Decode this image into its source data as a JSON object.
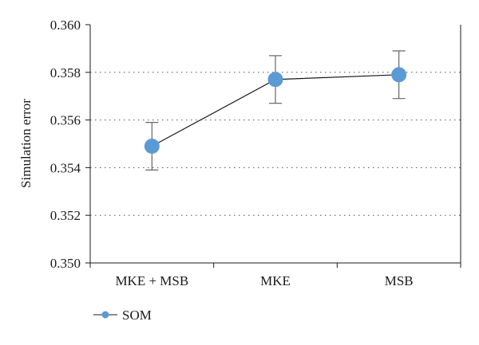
{
  "chart_data": {
    "type": "line",
    "title": "",
    "xlabel": "",
    "ylabel": "Simulation error",
    "categories": [
      "MKE + MSB",
      "MKE",
      "MSB"
    ],
    "ylim": [
      0.35,
      0.36
    ],
    "yticks": [
      "0.350",
      "0.352",
      "0.354",
      "0.356",
      "0.358",
      "0.360"
    ],
    "grid": "horizontal-dotted",
    "legend_position": "bottom-left",
    "series": [
      {
        "name": "SOM",
        "color": "#5b9bd5",
        "values": [
          0.3549,
          0.3577,
          0.3579
        ],
        "error_low": [
          0.3539,
          0.3567,
          0.3569
        ],
        "error_high": [
          0.3559,
          0.3587,
          0.3589
        ]
      }
    ]
  }
}
